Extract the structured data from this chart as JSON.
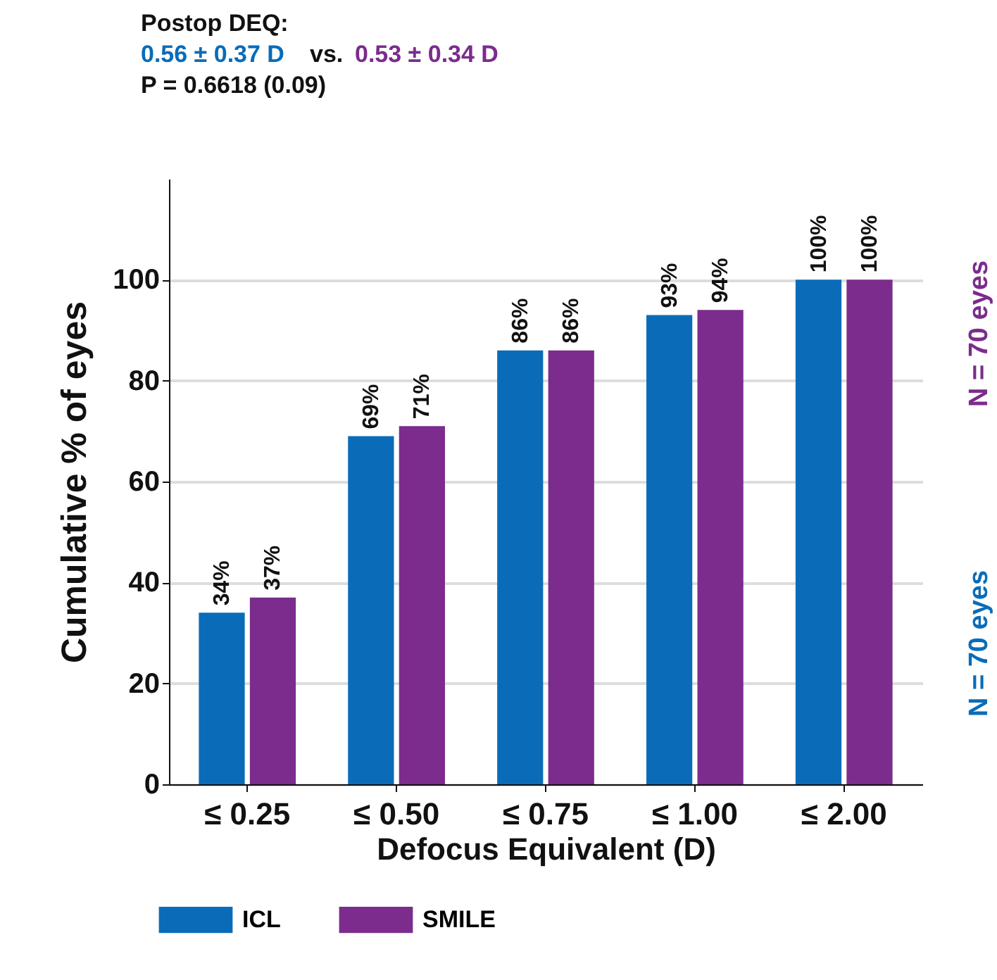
{
  "chart_data": {
    "type": "bar",
    "title": "Postop DEQ:",
    "xlabel": "Defocus Equivalent (D)",
    "ylabel": "Cumulative % of eyes",
    "categories": [
      "≤ 0.25",
      "≤ 0.50",
      "≤ 0.75",
      "≤ 1.00",
      "≤ 2.00"
    ],
    "series": [
      {
        "name": "ICL",
        "color": "#0a6cb8",
        "values": [
          34,
          69,
          86,
          93,
          100
        ],
        "value_labels": [
          "34%",
          "69%",
          "86%",
          "93%",
          "100%"
        ]
      },
      {
        "name": "SMILE",
        "color": "#7b2c8c",
        "values": [
          37,
          71,
          86,
          94,
          100
        ],
        "value_labels": [
          "37%",
          "71%",
          "86%",
          "94%",
          "100%"
        ]
      }
    ],
    "ylim": [
      0,
      120
    ],
    "yticks": [
      0,
      20,
      40,
      60,
      80,
      100
    ],
    "grid": "y",
    "legend": "bottom",
    "annotations": [
      "0.56 ± 0.37 D",
      "vs.",
      "0.53 ± 0.34 D",
      "P = 0.6618 (0.09)",
      "N = 70 eyes",
      "N = 70 eyes"
    ]
  }
}
